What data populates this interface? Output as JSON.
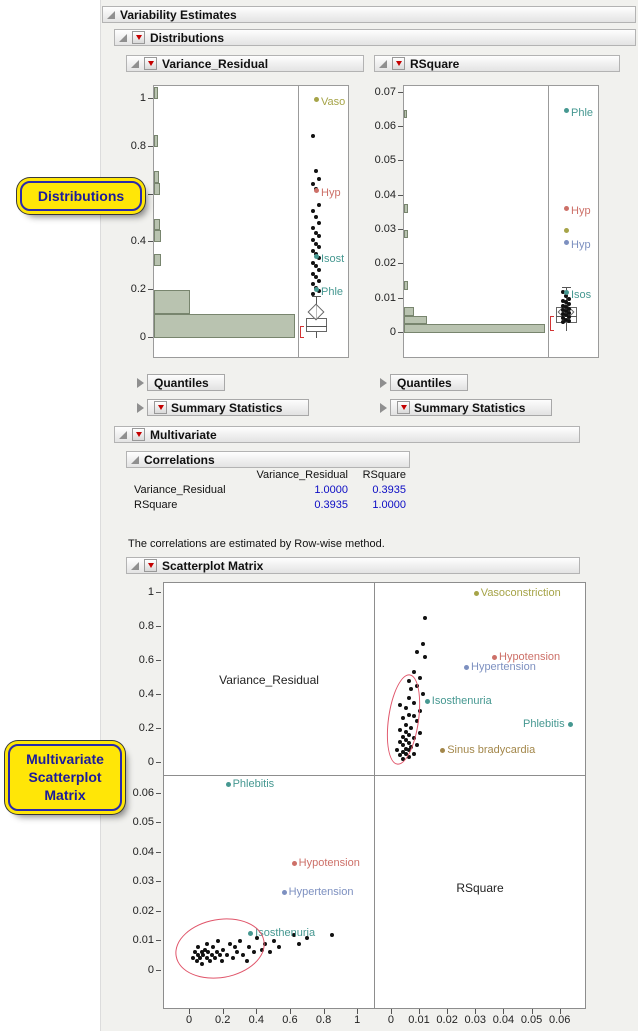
{
  "outline": {
    "variability_title": "Variability Estimates",
    "distributions_title": "Distributions",
    "variance_title": "Variance_Residual",
    "rsquare_title": "RSquare",
    "quantiles_label": "Quantiles",
    "summary_label": "Summary Statistics",
    "multivariate_title": "Multivariate",
    "correlations_title": "Correlations",
    "scatterplot_title": "Scatterplot Matrix"
  },
  "correlations": {
    "col_headers": [
      "Variance_Residual",
      "RSquare"
    ],
    "rows": [
      {
        "label": "Variance_Residual",
        "values": [
          "1.0000",
          "0.3935"
        ]
      },
      {
        "label": "RSquare",
        "values": [
          "0.3935",
          "1.0000"
        ]
      }
    ],
    "footnote": "The correlations are estimated by Row-wise method."
  },
  "callouts": {
    "distributions": "Distributions",
    "scatterplot_lines": [
      "Multivariate",
      "Scatterplot",
      "Matrix"
    ]
  },
  "colors": {
    "olive": "#a6a448",
    "red": "#cd7068",
    "blue": "#7d90c0",
    "teal": "#469891",
    "gold": "#a3874a",
    "ellipse": "#e0556a",
    "value_blue": "#0c0cc4",
    "hist_fill": "#b9c3b0"
  },
  "chart_data": {
    "distributions": {
      "variance": {
        "type": "histogram+outlier-boxplot",
        "variable": "Variance_Residual",
        "scale": {
          "min": -0.079,
          "max": 1.054
        },
        "ticks": [
          [
            0,
            "0"
          ],
          [
            0.2,
            "0.2"
          ],
          [
            0.4,
            "0.4"
          ],
          [
            0.6,
            "0.6"
          ],
          [
            0.8,
            "0.8"
          ],
          [
            1,
            "1"
          ]
        ],
        "bins": [
          [
            0,
            0.1,
            0.99
          ],
          [
            0.1,
            0.2,
            0.25
          ],
          [
            0.3,
            0.35,
            0.05
          ],
          [
            0.4,
            0.45,
            0.05
          ],
          [
            0.45,
            0.5,
            0.04
          ],
          [
            0.6,
            0.65,
            0.04
          ],
          [
            0.65,
            0.7,
            0.035
          ],
          [
            0.8,
            0.85,
            0.03
          ],
          [
            1.0,
            1.05,
            0.03
          ]
        ],
        "points": [
          0.845,
          0.7,
          0.665,
          0.645,
          0.625,
          0.555,
          0.53,
          0.505,
          0.48,
          0.46,
          0.44,
          0.425,
          0.41,
          0.395,
          0.38,
          0.365,
          0.35,
          0.335,
          0.315,
          0.3,
          0.285,
          0.27,
          0.255,
          0.24,
          0.225,
          0.21,
          0.195,
          0.185
        ],
        "labeled": [
          {
            "label": "Vaso",
            "v": 1.0,
            "color": "#a6a448"
          },
          {
            "label": "Hyp",
            "v": 0.62,
            "color": "#cd7068"
          },
          {
            "label": "Isost",
            "v": 0.345,
            "color": "#469891"
          },
          {
            "label": "Phle",
            "v": 0.205,
            "color": "#469891"
          }
        ],
        "box": {
          "lo": 0.0,
          "q1": 0.025,
          "med": 0.05,
          "q3": 0.085,
          "hi": 0.175,
          "mean": 0.11
        }
      },
      "rsquare": {
        "type": "histogram+outlier-boxplot",
        "variable": "RSquare",
        "scale": {
          "min": -0.007,
          "max": 0.0719
        },
        "ticks": [
          [
            0,
            "0"
          ],
          [
            0.01,
            "0.01"
          ],
          [
            0.02,
            "0.02"
          ],
          [
            0.03,
            "0.03"
          ],
          [
            0.04,
            "0.04"
          ],
          [
            0.05,
            "0.05"
          ],
          [
            0.06,
            "0.06"
          ],
          [
            0.07,
            "0.07"
          ]
        ],
        "bins": [
          [
            0,
            0.0025,
            0.99
          ],
          [
            0.0025,
            0.005,
            0.16
          ],
          [
            0.005,
            0.0075,
            0.07
          ],
          [
            0.0125,
            0.015,
            0.03
          ],
          [
            0.0275,
            0.03,
            0.025
          ],
          [
            0.035,
            0.0375,
            0.025
          ],
          [
            0.0625,
            0.065,
            0.02
          ]
        ],
        "points": [
          0.0118,
          0.0108,
          0.01,
          0.0094,
          0.0089,
          0.0084,
          0.0079,
          0.0075,
          0.0071,
          0.0067,
          0.0063,
          0.0059,
          0.0055,
          0.0051,
          0.0047,
          0.0043,
          0.0039,
          0.0035,
          0.0031
        ],
        "labeled": [
          {
            "label": "Phle",
            "v": 0.065,
            "color": "#469891"
          },
          {
            "label": "Hyp",
            "v": 0.0365,
            "color": "#cd7068"
          },
          {
            "label": "",
            "v": 0.03,
            "color": "#a6a448"
          },
          {
            "label": "Hyp",
            "v": 0.0265,
            "color": "#7d90c0"
          },
          {
            "label": "Isos",
            "v": 0.012,
            "color": "#469891"
          }
        ],
        "box": {
          "lo": 0.0005,
          "q1": 0.003,
          "med": 0.005,
          "q3": 0.0075,
          "hi": 0.0135,
          "mean": 0.006
        }
      }
    },
    "scatter_matrix": {
      "type": "scatter",
      "diag": [
        "Variance_Residual",
        "RSquare"
      ],
      "scales": {
        "vr_h": {
          "min": -0.155,
          "max": 1.1
        },
        "vr_v": {
          "min": -0.0765,
          "max": 1.059
        },
        "rs_h": {
          "min": -0.006,
          "max": 0.069
        },
        "rs_v": {
          "min": -0.0129,
          "max": 0.0661
        }
      },
      "vr_ticks": [
        [
          0,
          "0"
        ],
        [
          0.2,
          "0.2"
        ],
        [
          0.4,
          "0.4"
        ],
        [
          0.6,
          "0.6"
        ],
        [
          0.8,
          "0.8"
        ],
        [
          1,
          "1"
        ]
      ],
      "rs_ticks": [
        [
          0,
          "0"
        ],
        [
          0.01,
          "0.01"
        ],
        [
          0.02,
          "0.02"
        ],
        [
          0.03,
          "0.03"
        ],
        [
          0.04,
          "0.04"
        ],
        [
          0.05,
          "0.05"
        ],
        [
          0.06,
          "0.06"
        ]
      ],
      "points": [
        [
          0.02,
          0.004
        ],
        [
          0.03,
          0.006
        ],
        [
          0.04,
          0.003
        ],
        [
          0.05,
          0.005
        ],
        [
          0.05,
          0.008
        ],
        [
          0.06,
          0.004
        ],
        [
          0.07,
          0.006
        ],
        [
          0.07,
          0.002
        ],
        [
          0.08,
          0.005
        ],
        [
          0.09,
          0.007
        ],
        [
          0.1,
          0.004
        ],
        [
          0.1,
          0.009
        ],
        [
          0.11,
          0.006
        ],
        [
          0.12,
          0.003
        ],
        [
          0.13,
          0.005
        ],
        [
          0.14,
          0.008
        ],
        [
          0.15,
          0.004
        ],
        [
          0.16,
          0.006
        ],
        [
          0.17,
          0.01
        ],
        [
          0.18,
          0.005
        ],
        [
          0.19,
          0.003
        ],
        [
          0.2,
          0.007
        ],
        [
          0.22,
          0.005
        ],
        [
          0.24,
          0.009
        ],
        [
          0.26,
          0.004
        ],
        [
          0.27,
          0.008
        ],
        [
          0.28,
          0.006
        ],
        [
          0.3,
          0.01
        ],
        [
          0.32,
          0.005
        ],
        [
          0.34,
          0.003
        ],
        [
          0.35,
          0.008
        ],
        [
          0.38,
          0.006
        ],
        [
          0.4,
          0.011
        ],
        [
          0.43,
          0.007
        ],
        [
          0.45,
          0.009
        ],
        [
          0.48,
          0.006
        ],
        [
          0.5,
          0.01
        ],
        [
          0.53,
          0.008
        ],
        [
          0.62,
          0.012
        ],
        [
          0.65,
          0.009
        ],
        [
          0.7,
          0.011
        ],
        [
          0.85,
          0.012
        ]
      ],
      "labeled": [
        {
          "label": "Vasoconstriction",
          "vr": 1.0,
          "rs": 0.03,
          "color": "#a6a448",
          "tr_side": "right",
          "bl": false
        },
        {
          "label": "Hypotension",
          "vr": 0.62,
          "rs": 0.0365,
          "color": "#cd7068",
          "tr_side": "right",
          "bl": true,
          "bl_side": "right"
        },
        {
          "label": "Hypertension",
          "vr": 0.56,
          "rs": 0.0265,
          "color": "#7d90c0",
          "tr_side": "right",
          "bl": true,
          "bl_side": "right"
        },
        {
          "label": "Isosthenuria",
          "vr": 0.36,
          "rs": 0.0125,
          "color": "#469891",
          "tr_side": "right",
          "bl": true,
          "bl_side": "right"
        },
        {
          "label": "Phlebitis",
          "vr": 0.225,
          "rs": 0.0635,
          "color": "#469891",
          "tr_side": "left",
          "bl": true,
          "bl_side": "right"
        },
        {
          "label": "Sinus bradycardia",
          "vr": 0.07,
          "rs": 0.018,
          "color": "#a3874a",
          "tr_side": "right",
          "bl": false
        }
      ],
      "ellipses": {
        "tr": {
          "cx": 0.004,
          "cy": 0.25,
          "rx": 0.0055,
          "ry": 0.27,
          "rot": 8
        },
        "bl": {
          "cx": 0.18,
          "cy": 0.0075,
          "rx": 0.27,
          "ry": 0.01,
          "rot": -10
        }
      }
    }
  }
}
